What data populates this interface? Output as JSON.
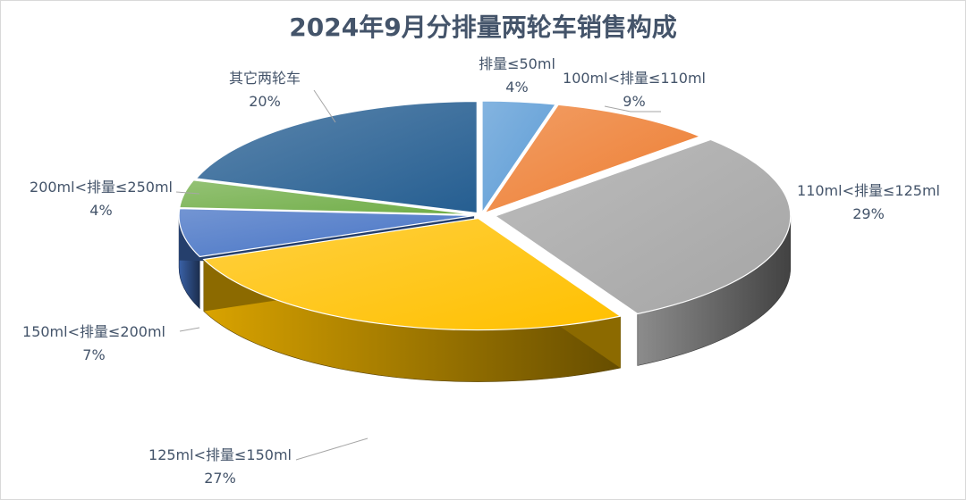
{
  "chart_data": {
    "type": "pie",
    "title": "2024年9月分排量两轮车销售构成",
    "categories": [
      "排量≤50ml",
      "100ml<排量≤110ml",
      "110ml<排量≤125ml",
      "125ml<排量≤150ml",
      "150ml<排量≤200ml",
      "200ml<排量≤250ml",
      "其它两轮车"
    ],
    "values": [
      4,
      9,
      29,
      27,
      7,
      4,
      20
    ],
    "value_labels": [
      "4%",
      "9%",
      "29%",
      "27%",
      "7%",
      "4%",
      "20%"
    ],
    "colors": [
      "#5b9bd5",
      "#ed7d31",
      "#a5a5a5",
      "#ffc000",
      "#4472c4",
      "#70ad47",
      "#255e91"
    ],
    "style": "3d-exploded",
    "legend": "none"
  }
}
